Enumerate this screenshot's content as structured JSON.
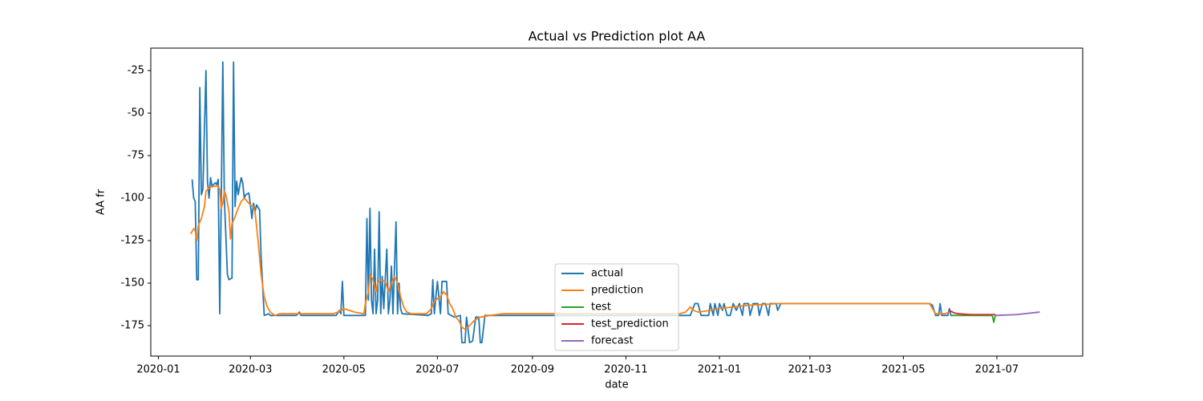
{
  "chart_data": {
    "type": "line",
    "title": "Actual vs Prediction plot AA",
    "x_label": "date",
    "y_label": "AA fr",
    "xlim": [
      "2019-12-27",
      "2021-08-26"
    ],
    "xticks": [
      "2020-01",
      "2020-03",
      "2020-05",
      "2020-07",
      "2020-09",
      "2020-11",
      "2021-01",
      "2021-03",
      "2021-05",
      "2021-07"
    ],
    "ylim": [
      -192.9,
      -11.8
    ],
    "yticks": [
      -175,
      -150,
      -125,
      -100,
      -75,
      -50,
      -25
    ],
    "legend": "lower center",
    "series": [
      {
        "name": "actual",
        "color": "#1f77b4",
        "x": [
          "2020-01-23",
          "2020-01-24",
          "2020-01-25",
          "2020-01-26",
          "2020-01-27",
          "2020-01-28",
          "2020-01-29",
          "2020-01-30",
          "2020-02-01",
          "2020-02-02",
          "2020-02-03",
          "2020-02-04",
          "2020-02-05",
          "2020-02-07",
          "2020-02-08",
          "2020-02-09",
          "2020-02-10",
          "2020-02-11",
          "2020-02-12",
          "2020-02-13",
          "2020-02-15",
          "2020-02-16",
          "2020-02-18",
          "2020-02-19",
          "2020-02-20",
          "2020-02-21",
          "2020-02-22",
          "2020-02-24",
          "2020-02-25",
          "2020-02-26",
          "2020-02-27",
          "2020-02-29",
          "2020-03-01",
          "2020-03-02",
          "2020-03-03",
          "2020-03-04",
          "2020-03-05",
          "2020-03-07",
          "2020-03-08",
          "2020-03-10",
          "2020-03-13",
          "2020-03-14",
          "2020-03-31",
          "2020-04-02",
          "2020-04-03",
          "2020-04-26",
          "2020-04-28",
          "2020-04-29",
          "2020-04-30",
          "2020-05-01",
          "2020-05-15",
          "2020-05-16",
          "2020-05-17",
          "2020-05-18",
          "2020-05-19",
          "2020-05-20",
          "2020-05-21",
          "2020-05-22",
          "2020-05-23",
          "2020-05-24",
          "2020-05-25",
          "2020-05-26",
          "2020-05-27",
          "2020-05-28",
          "2020-05-29",
          "2020-05-30",
          "2020-05-31",
          "2020-06-01",
          "2020-06-02",
          "2020-06-04",
          "2020-06-05",
          "2020-06-06",
          "2020-06-07",
          "2020-06-08",
          "2020-06-25",
          "2020-06-27",
          "2020-06-28",
          "2020-06-29",
          "2020-06-30",
          "2020-07-01",
          "2020-07-03",
          "2020-07-04",
          "2020-07-07",
          "2020-07-08",
          "2020-07-12",
          "2020-07-16",
          "2020-07-17",
          "2020-07-19",
          "2020-07-20",
          "2020-07-22",
          "2020-07-24",
          "2020-07-26",
          "2020-07-28",
          "2020-07-29",
          "2020-07-30",
          "2020-08-01",
          "2020-12-13",
          "2020-12-16",
          "2020-12-18",
          "2020-12-20",
          "2020-12-25",
          "2020-12-26",
          "2020-12-28",
          "2020-12-29",
          "2020-12-31",
          "2021-01-01",
          "2021-01-03",
          "2021-01-04",
          "2021-01-06",
          "2021-01-08",
          "2021-01-10",
          "2021-01-12",
          "2021-01-14",
          "2021-01-16",
          "2021-01-17",
          "2021-01-20",
          "2021-01-21",
          "2021-01-23",
          "2021-01-26",
          "2021-01-27",
          "2021-01-29",
          "2021-01-31",
          "2021-02-02",
          "2021-02-03",
          "2021-02-07",
          "2021-02-08",
          "2021-02-10",
          "2021-05-18",
          "2021-05-20",
          "2021-05-22",
          "2021-05-24",
          "2021-05-25",
          "2021-05-26",
          "2021-05-30",
          "2021-05-31",
          "2021-06-01",
          "2021-06-02"
        ],
        "values": [
          -89,
          -100,
          -102,
          -148,
          -148,
          -35,
          -98,
          -95,
          -25,
          -90,
          -100,
          -88,
          -93,
          -91,
          -92,
          -89,
          -168,
          -100,
          -20,
          -100,
          -145,
          -148,
          -147,
          -20,
          -105,
          -90,
          -98,
          -88,
          -91,
          -100,
          -98,
          -97,
          -104,
          -112,
          -103,
          -108,
          -104,
          -107,
          -135,
          -169,
          -168,
          -169,
          -169,
          -167,
          -169,
          -169,
          -166,
          -168,
          -149,
          -169,
          -169,
          -112,
          -160,
          -106,
          -160,
          -168,
          -130,
          -168,
          -160,
          -108,
          -168,
          -146,
          -165,
          -147,
          -130,
          -168,
          -160,
          -140,
          -168,
          -114,
          -168,
          -150,
          -165,
          -168,
          -169,
          -168,
          -148,
          -168,
          -158,
          -149,
          -168,
          -149,
          -149,
          -168,
          -170,
          -169,
          -185,
          -185,
          -170,
          -185,
          -184,
          -170,
          -170,
          -185,
          -185,
          -169,
          -169,
          -162,
          -162,
          -169,
          -169,
          -162,
          -169,
          -162,
          -169,
          -162,
          -166,
          -162,
          -169,
          -169,
          -162,
          -166,
          -162,
          -169,
          -162,
          -162,
          -169,
          -162,
          -162,
          -169,
          -162,
          -162,
          -169,
          -162,
          -162,
          -166,
          -162,
          -162,
          -163,
          -169,
          -169,
          -162,
          -169,
          -169,
          -165,
          -169,
          -169
        ]
      },
      {
        "name": "prediction",
        "color": "#ff7f0e",
        "x": [
          "2020-01-22",
          "2020-01-24",
          "2020-01-25",
          "2020-01-26",
          "2020-01-27",
          "2020-01-29",
          "2020-01-31",
          "2020-02-01",
          "2020-02-03",
          "2020-02-06",
          "2020-02-09",
          "2020-02-10",
          "2020-02-11",
          "2020-02-12",
          "2020-02-13",
          "2020-02-14",
          "2020-02-16",
          "2020-02-17",
          "2020-02-18",
          "2020-02-20",
          "2020-02-22",
          "2020-02-24",
          "2020-02-26",
          "2020-02-28",
          "2020-03-01",
          "2020-03-03",
          "2020-03-04",
          "2020-03-06",
          "2020-03-08",
          "2020-03-10",
          "2020-03-12",
          "2020-03-14",
          "2020-03-17",
          "2020-03-20",
          "2020-03-31",
          "2020-04-10",
          "2020-04-24",
          "2020-04-27",
          "2020-04-29",
          "2020-05-01",
          "2020-05-08",
          "2020-05-14",
          "2020-05-15",
          "2020-05-17",
          "2020-05-18",
          "2020-05-20",
          "2020-05-22",
          "2020-05-23",
          "2020-05-25",
          "2020-05-28",
          "2020-05-30",
          "2020-06-01",
          "2020-06-03",
          "2020-06-05",
          "2020-06-07",
          "2020-06-09",
          "2020-06-11",
          "2020-06-14",
          "2020-06-24",
          "2020-06-27",
          "2020-06-29",
          "2020-07-01",
          "2020-07-03",
          "2020-07-05",
          "2020-07-07",
          "2020-07-09",
          "2020-07-11",
          "2020-07-13",
          "2020-07-15",
          "2020-07-17",
          "2020-07-19",
          "2020-07-22",
          "2020-07-25",
          "2020-07-29",
          "2020-08-04",
          "2020-08-13",
          "2020-12-06",
          "2020-12-10",
          "2020-12-13",
          "2020-12-15",
          "2020-12-18",
          "2020-12-26",
          "2020-12-31",
          "2021-01-10",
          "2021-01-20",
          "2021-01-30",
          "2021-02-09",
          "2021-02-24",
          "2021-05-15",
          "2021-05-18",
          "2021-05-20",
          "2021-05-22",
          "2021-05-25",
          "2021-05-28",
          "2021-05-31"
        ],
        "values": [
          -121,
          -118,
          -119,
          -125,
          -116,
          -112,
          -105,
          -96,
          -94,
          -93,
          -93,
          -95,
          -106,
          -103,
          -96,
          -98,
          -108,
          -124,
          -115,
          -111,
          -106,
          -102,
          -100,
          -102,
          -104,
          -105,
          -108,
          -125,
          -145,
          -158,
          -164,
          -167,
          -169,
          -168,
          -168,
          -168,
          -168,
          -167,
          -166,
          -165,
          -167,
          -168,
          -162,
          -155,
          -145,
          -148,
          -155,
          -150,
          -148,
          -149,
          -155,
          -150,
          -146,
          -150,
          -158,
          -164,
          -167,
          -168,
          -168,
          -165,
          -161,
          -159,
          -158,
          -155,
          -157,
          -162,
          -165,
          -170,
          -172,
          -176,
          -177,
          -175,
          -172,
          -170,
          -169,
          -168,
          -168,
          -167,
          -164,
          -166,
          -167,
          -166,
          -165,
          -164,
          -163,
          -162.5,
          -162,
          -162,
          -162,
          -162,
          -165,
          -168,
          -168,
          -168,
          -167
        ]
      },
      {
        "name": "test",
        "color": "#2ca02c",
        "x": [
          "2021-06-01",
          "2021-06-04",
          "2021-06-14",
          "2021-06-24",
          "2021-06-28",
          "2021-06-29",
          "2021-06-30",
          "2021-07-01"
        ],
        "values": [
          -169,
          -169,
          -169,
          -169,
          -169,
          -173,
          -169,
          -169
        ]
      },
      {
        "name": "test_prediction",
        "color": "#d62728",
        "x": [
          "2021-05-31",
          "2021-06-03",
          "2021-06-06",
          "2021-06-14",
          "2021-06-24",
          "2021-06-30"
        ],
        "values": [
          -166,
          -167.5,
          -168,
          -168.5,
          -168.5,
          -168.5
        ]
      },
      {
        "name": "forecast",
        "color": "#9467bd",
        "x": [
          "2021-06-30",
          "2021-07-14",
          "2021-07-29"
        ],
        "values": [
          -169,
          -168.5,
          -167
        ]
      }
    ]
  }
}
